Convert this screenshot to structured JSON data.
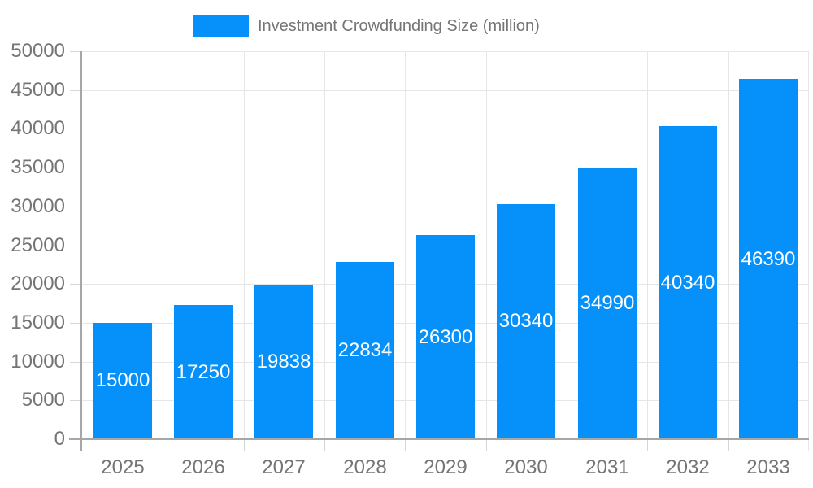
{
  "chart_data": {
    "type": "bar",
    "title": "Investment Crowdfunding Size (million)",
    "legend_position": "top",
    "categories": [
      "2025",
      "2026",
      "2027",
      "2028",
      "2029",
      "2030",
      "2031",
      "2032",
      "2033"
    ],
    "values": [
      15000,
      17250,
      19838,
      22834,
      26300,
      30340,
      34990,
      40340,
      46390
    ],
    "value_labels": [
      "15000",
      "17250",
      "19838",
      "22834",
      "26300",
      "30340",
      "34990",
      "40340",
      "46390"
    ],
    "xlabel": "",
    "ylabel": "",
    "ylim": [
      0,
      50000
    ],
    "y_tick_step": 5000,
    "y_tick_labels": [
      "0",
      "5000",
      "10000",
      "15000",
      "20000",
      "25000",
      "30000",
      "35000",
      "40000",
      "45000",
      "50000"
    ],
    "grid": true,
    "colors": {
      "bar": "#0590FA",
      "axis_line": "#a6a6a6",
      "gridline": "#e6e6e6",
      "tick": "#d6d6d6",
      "label_text": "#757575",
      "value_text": "#ffffff",
      "background": "#ffffff"
    }
  }
}
